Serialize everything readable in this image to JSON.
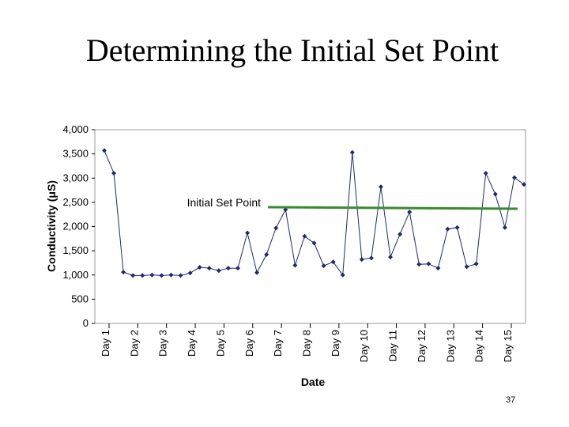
{
  "slide": {
    "title": "Determining the Initial Set Point",
    "page_number": "37"
  },
  "chart_data": {
    "type": "line",
    "title": "",
    "xlabel": "Date",
    "ylabel": "Conductivity (μS)",
    "ylim": [
      0,
      4000
    ],
    "y_ticks": [
      0,
      500,
      1000,
      1500,
      2000,
      2500,
      3000,
      3500,
      4000
    ],
    "y_tick_labels": [
      "0",
      "500",
      "1,000",
      "1,500",
      "2,000",
      "2,500",
      "3,000",
      "3,500",
      "4,000"
    ],
    "x_tick_labels": [
      "Day 1",
      "Day 2",
      "Day 3",
      "Day 4",
      "Day 5",
      "Day 6",
      "Day 7",
      "Day 8",
      "Day 9",
      "Day 10",
      "Day 11",
      "Day 12",
      "Day 13",
      "Day 14",
      "Day 15"
    ],
    "series": [
      {
        "color": "#1f2a6b",
        "values": [
          3570,
          3100,
          1060,
          990,
          990,
          1000,
          990,
          1000,
          990,
          1040,
          1160,
          1140,
          1090,
          1140,
          1140,
          1870,
          1050,
          1420,
          1970,
          2350,
          1200,
          1800,
          1660,
          1190,
          1270,
          1000,
          3530,
          1320,
          1350,
          2820,
          1370,
          1840,
          2300,
          1220,
          1230,
          1140,
          1950,
          1980,
          1170,
          1230,
          3100,
          2670,
          1980,
          3010,
          2870
        ]
      }
    ],
    "annotation": {
      "label": "Initial Set Point",
      "value": 2400,
      "color": "#3a8a2e"
    },
    "grid": false
  }
}
